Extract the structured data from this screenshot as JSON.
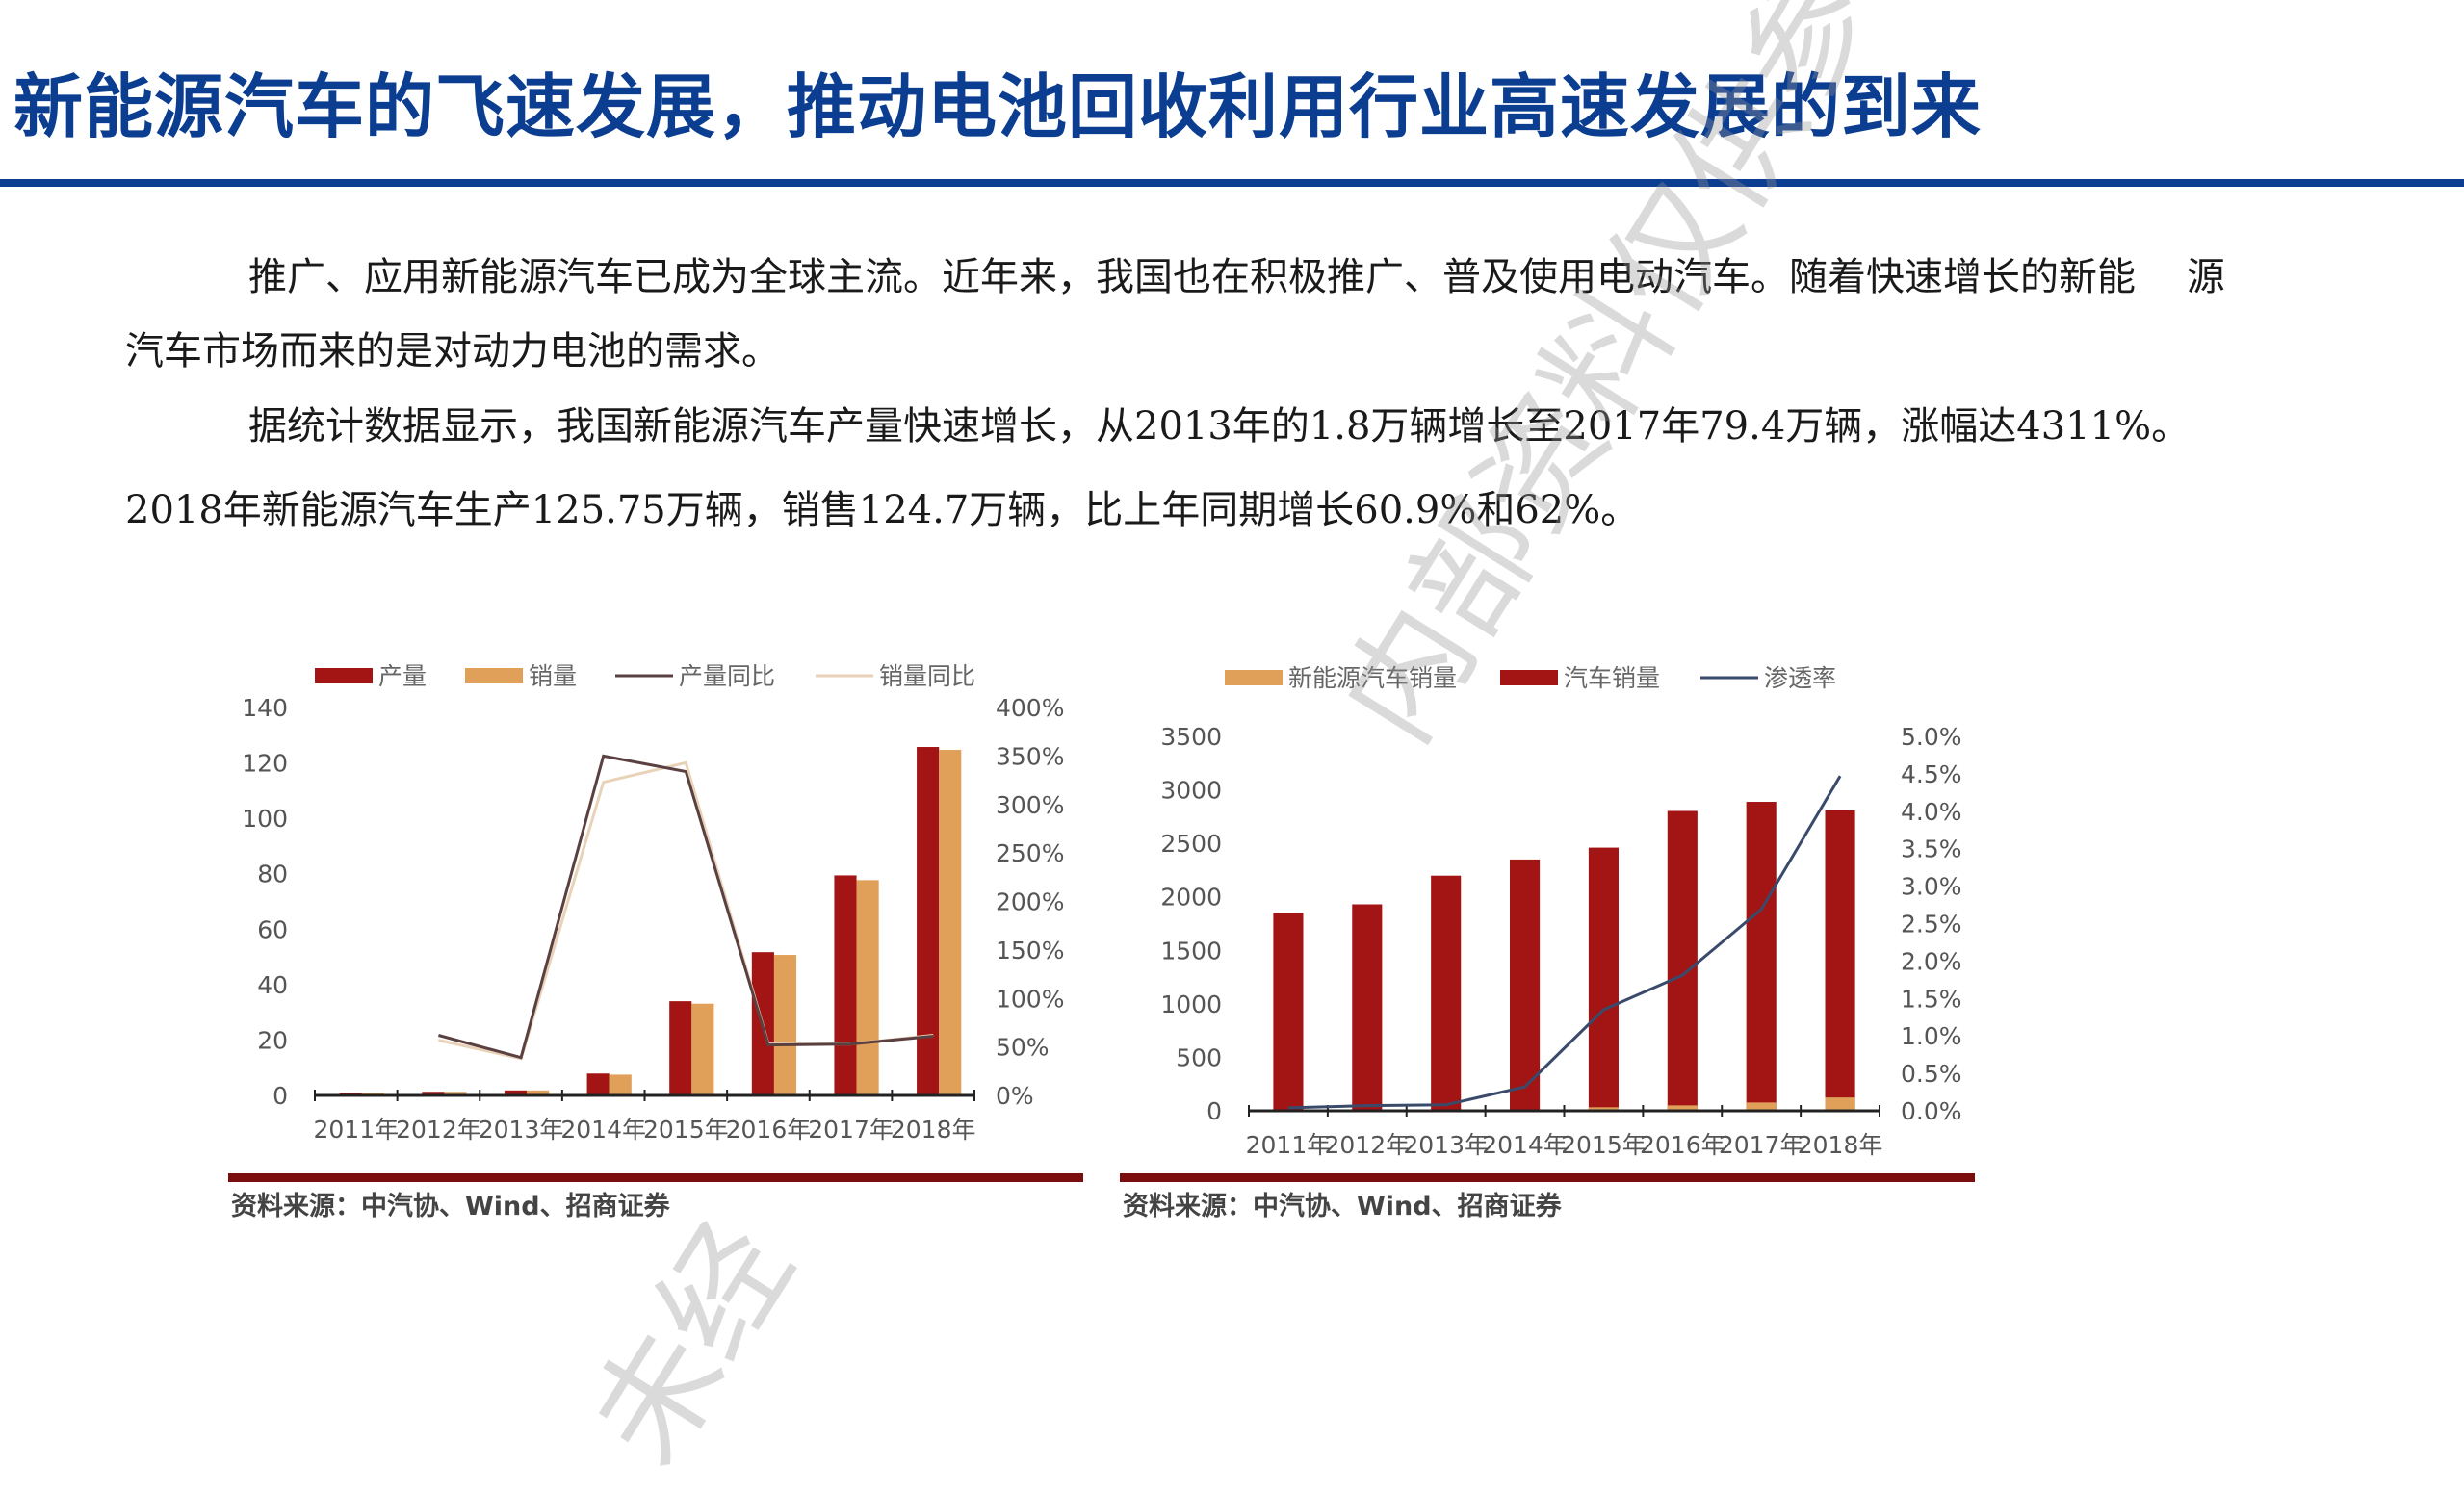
{
  "title": "新能源汽车的飞速发展，推动电池回收利用行业高速发展的到来",
  "paragraphs": [
    "推广、应用新能源汽车已成为全球主流。近年来，我国也在积极推广、普及使用电动汽车。随着快速增长的新能　 源",
    "汽车市场而来的是对动力电池的需求。",
    "据统计数据显示，我国新能源汽车产量快速增长，从2013年的1.8万辆增长至2017年79.4万辆，涨幅达4311%。",
    "2018年新能源汽车生产125.75万辆，销售124.7万辆，比上年同期增长60.9%和62%。"
  ],
  "colors": {
    "title": "#0b3d91",
    "bar_dark_red": "#a31515",
    "bar_orange": "#e0a05a",
    "line_dark": "#5a4040",
    "line_light": "#e8d2b8",
    "line_navy": "#3a4a6a",
    "source_bar": "#7a0d0d"
  },
  "watermark": {
    "main": "内部资料仅供参考",
    "secondary": "未经"
  },
  "chart_data": [
    {
      "type": "bar",
      "title": "",
      "legend": [
        "产量",
        "销量",
        "产量同比",
        "销量同比"
      ],
      "legend_position": "top",
      "categories": [
        "2011年",
        "2012年",
        "2013年",
        "2014年",
        "2015年",
        "2016年",
        "2017年",
        "2018年"
      ],
      "series": [
        {
          "name": "产量",
          "kind": "bar",
          "axis": "left",
          "values": [
            0.8,
            1.3,
            1.8,
            7.9,
            34.0,
            51.7,
            79.4,
            125.75
          ]
        },
        {
          "name": "销量",
          "kind": "bar",
          "axis": "left",
          "values": [
            0.8,
            1.3,
            1.8,
            7.5,
            33.1,
            50.7,
            77.7,
            124.7
          ]
        },
        {
          "name": "产量同比",
          "kind": "line",
          "axis": "right",
          "values": [
            null,
            62,
            39,
            350,
            334,
            52,
            53,
            61
          ]
        },
        {
          "name": "销量同比",
          "kind": "line",
          "axis": "right",
          "values": [
            null,
            57,
            38,
            323,
            343,
            53,
            53,
            62
          ]
        }
      ],
      "ylim": [
        0,
        140
      ],
      "yticks": [
        "0",
        "20",
        "40",
        "60",
        "80",
        "100",
        "120",
        "140"
      ],
      "y2lim": [
        0,
        400
      ],
      "y2ticks": [
        "0%",
        "50%",
        "100%",
        "150%",
        "200%",
        "250%",
        "300%",
        "350%",
        "400%"
      ],
      "xlabel": "",
      "ylabel": "",
      "grid": false,
      "source": "资料来源：中汽协、Wind、招商证券"
    },
    {
      "type": "bar",
      "title": "",
      "legend": [
        "新能源汽车销量",
        "汽车销量",
        "渗透率"
      ],
      "legend_position": "top",
      "categories": [
        "2011年",
        "2012年",
        "2013年",
        "2014年",
        "2015年",
        "2016年",
        "2017年",
        "2018年"
      ],
      "series": [
        {
          "name": "新能源汽车销量",
          "kind": "bar",
          "axis": "left",
          "values": [
            0.8,
            1.3,
            1.8,
            7.5,
            33.1,
            50.7,
            77.7,
            124.7
          ]
        },
        {
          "name": "汽车销量",
          "kind": "bar",
          "axis": "left",
          "values": [
            1850,
            1930,
            2198,
            2349,
            2460,
            2803,
            2888,
            2808
          ]
        },
        {
          "name": "渗透率",
          "kind": "line",
          "axis": "right",
          "values": [
            0.04,
            0.07,
            0.08,
            0.32,
            1.35,
            1.81,
            2.69,
            4.47
          ]
        }
      ],
      "ylim": [
        0,
        3500
      ],
      "yticks": [
        "0",
        "500",
        "1000",
        "1500",
        "2000",
        "2500",
        "3000",
        "3500"
      ],
      "y2lim": [
        0,
        5.0
      ],
      "y2ticks": [
        "0.0%",
        "0.5%",
        "1.0%",
        "1.5%",
        "2.0%",
        "2.5%",
        "3.0%",
        "3.5%",
        "4.0%",
        "4.5%",
        "5.0%"
      ],
      "xlabel": "",
      "ylabel": "",
      "grid": false,
      "source": "资料来源：中汽协、Wind、招商证券"
    }
  ]
}
